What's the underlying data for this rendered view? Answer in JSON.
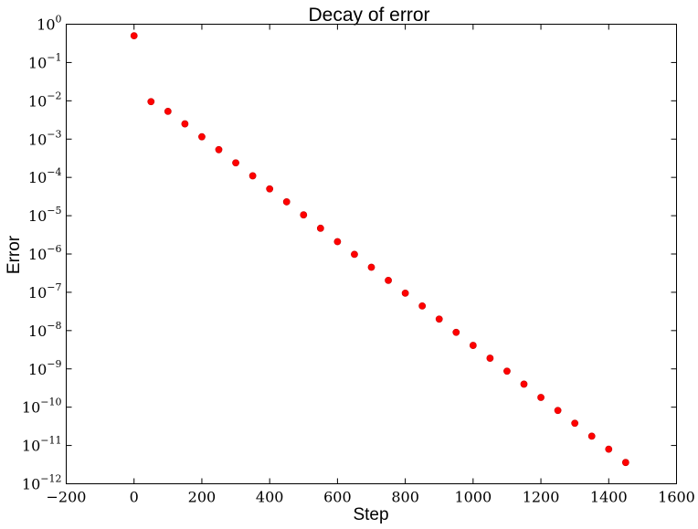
{
  "chart_data": {
    "type": "scatter",
    "title": "Decay of error",
    "xlabel": "Step",
    "ylabel": "Error",
    "xlim": [
      -200,
      1600
    ],
    "ylim": [
      1e-12,
      1
    ],
    "yscale": "log",
    "grid": false,
    "legend": "none",
    "xticks": [
      "−200",
      "0",
      "200",
      "400",
      "600",
      "800",
      "1000",
      "1200",
      "1400",
      "1600"
    ],
    "yticks": [
      {
        "base": "10",
        "exp": "0"
      },
      {
        "base": "10",
        "exp": "−1"
      },
      {
        "base": "10",
        "exp": "−2"
      },
      {
        "base": "10",
        "exp": "−3"
      },
      {
        "base": "10",
        "exp": "−4"
      },
      {
        "base": "10",
        "exp": "−5"
      },
      {
        "base": "10",
        "exp": "−6"
      },
      {
        "base": "10",
        "exp": "−7"
      },
      {
        "base": "10",
        "exp": "−8"
      },
      {
        "base": "10",
        "exp": "−9"
      },
      {
        "base": "10",
        "exp": "−10"
      },
      {
        "base": "10",
        "exp": "−11"
      },
      {
        "base": "10",
        "exp": "−12"
      }
    ],
    "marker_color": "#ff0000",
    "series": [
      {
        "x": [
          0,
          50,
          100,
          150,
          200,
          250,
          300,
          350,
          400,
          450,
          500,
          550,
          600,
          650,
          700,
          750,
          800,
          850,
          900,
          950,
          1000,
          1050,
          1100,
          1150,
          1200,
          1250,
          1300,
          1350,
          1400,
          1450
        ],
        "y": [
          0.5,
          0.0095,
          0.0053,
          0.0025,
          0.00115,
          0.00053,
          0.00024,
          0.00011,
          5e-05,
          2.3e-05,
          1.05e-05,
          4.7e-06,
          2.1e-06,
          9.8e-07,
          4.5e-07,
          2.05e-07,
          9.5e-08,
          4.4e-08,
          2e-08,
          9e-09,
          4.1e-09,
          1.9e-09,
          8.7e-10,
          4e-10,
          1.8e-10,
          8.2e-11,
          3.8e-11,
          1.75e-11,
          8e-12,
          3.6e-12
        ]
      }
    ]
  }
}
